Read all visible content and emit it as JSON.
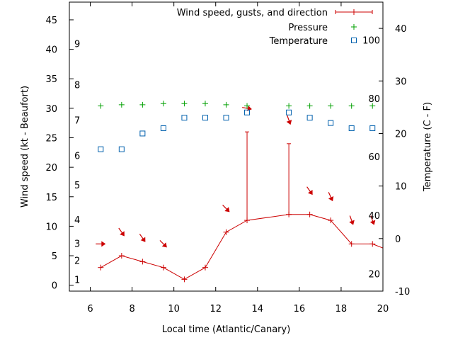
{
  "chart_data": {
    "type": "line",
    "xlabel": "Local time (Atlantic/Canary)",
    "ylabel_left": "Wind speed (kt - Beaufort)",
    "ylabel_right": "Temperature (C - F)",
    "xlim": [
      5,
      20
    ],
    "ylim_left": [
      -1,
      48
    ],
    "ylim_right": [
      -10,
      45
    ],
    "x_ticks": [
      "6",
      "8",
      "10",
      "12",
      "14",
      "16",
      "18",
      "20"
    ],
    "y_ticks_left": [
      "0",
      "5",
      "10",
      "15",
      "20",
      "25",
      "30",
      "35",
      "40",
      "45"
    ],
    "y_ticks_right": [
      "-10",
      "0",
      "10",
      "20",
      "30",
      "40"
    ],
    "y_ticks_right_values": [
      -10,
      0,
      10,
      20,
      30,
      40
    ],
    "beaufort_labels": [
      {
        "label": "1",
        "knots": 1
      },
      {
        "label": "2",
        "knots": 4.2
      },
      {
        "label": "3",
        "knots": 7.1
      },
      {
        "label": "4",
        "knots": 11.1
      },
      {
        "label": "5",
        "knots": 17
      },
      {
        "label": "6",
        "knots": 22
      },
      {
        "label": "7",
        "knots": 28
      },
      {
        "label": "8",
        "knots": 34
      },
      {
        "label": "9",
        "knots": 41
      }
    ],
    "fahrenheit_labels": [
      {
        "label": "20",
        "celsius": -6.7
      },
      {
        "label": "40",
        "celsius": 4.4
      },
      {
        "label": "60",
        "celsius": 15.6
      },
      {
        "label": "80",
        "celsius": 26.7
      },
      {
        "label": "100",
        "celsius": 37.8
      }
    ],
    "legend_position": "top-right",
    "grid": false,
    "series": [
      {
        "name": "Wind speed, gusts, and direction",
        "color": "#cc0000",
        "x": [
          6.5,
          7.5,
          8.5,
          9.5,
          10.5,
          11.5,
          12.5,
          13.5,
          15.5,
          16.5,
          17.5,
          18.5,
          19.5,
          20
        ],
        "y": [
          3,
          5,
          4,
          3,
          1,
          3,
          9,
          11,
          12,
          12,
          11,
          7,
          7,
          6.3
        ],
        "gusts": [
          {
            "x": 13.5,
            "y": 26
          },
          {
            "x": 15.5,
            "y": 24
          }
        ],
        "direction_arrows": [
          {
            "x": 6.5,
            "y": 7,
            "angle": 90
          },
          {
            "x": 7.5,
            "y": 9,
            "angle": 145
          },
          {
            "x": 8.5,
            "y": 8,
            "angle": 145
          },
          {
            "x": 9.5,
            "y": 7,
            "angle": 135
          },
          {
            "x": 12.5,
            "y": 13,
            "angle": 135
          },
          {
            "x": 13.5,
            "y": 30,
            "angle": 100
          },
          {
            "x": 15.5,
            "y": 28,
            "angle": 160
          },
          {
            "x": 16.5,
            "y": 16,
            "angle": 145
          },
          {
            "x": 17.5,
            "y": 15,
            "angle": 155
          },
          {
            "x": 18.5,
            "y": 11,
            "angle": 160
          },
          {
            "x": 19.5,
            "y": 11,
            "angle": 160
          }
        ]
      },
      {
        "name": "Pressure",
        "color": "#00a000",
        "marker": "plus",
        "x": [
          6.5,
          7.5,
          8.5,
          9.5,
          10.5,
          11.5,
          12.5,
          13.5,
          15.5,
          16.5,
          17.5,
          18.5,
          19.5
        ],
        "y": [
          30.4,
          30.6,
          30.6,
          30.8,
          30.8,
          30.8,
          30.6,
          30.4,
          30.4,
          30.4,
          30.4,
          30.4,
          30.4
        ]
      },
      {
        "name": "Temperature",
        "color": "#0060ad",
        "marker": "square",
        "axis": "right",
        "x": [
          6.5,
          7.5,
          8.5,
          9.5,
          10.5,
          11.5,
          12.5,
          13.5,
          15.5,
          16.5,
          17.5,
          18.5,
          19.5
        ],
        "y": [
          17,
          17,
          20,
          21,
          23,
          23,
          23,
          24,
          24,
          23,
          22,
          21,
          21
        ]
      }
    ]
  }
}
